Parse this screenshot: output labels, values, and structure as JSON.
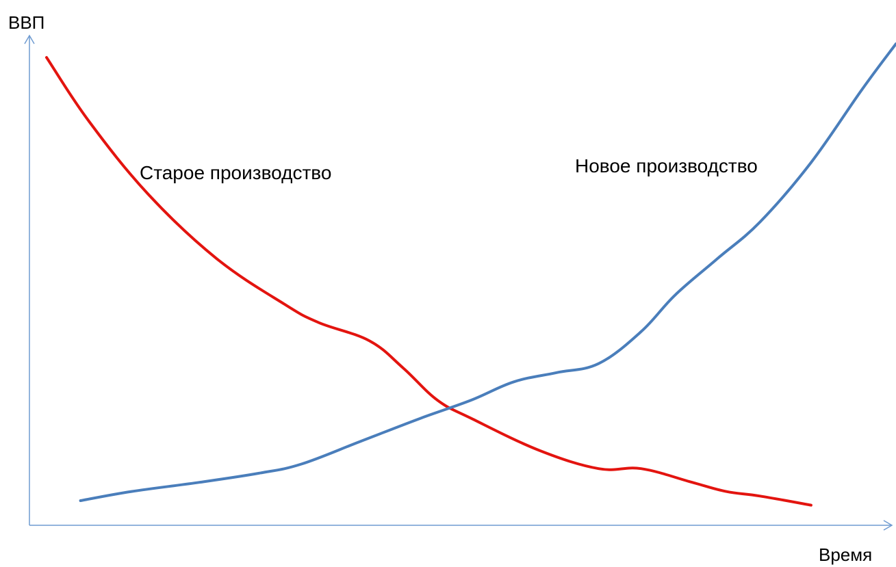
{
  "chart_data": {
    "type": "line",
    "title": "",
    "ylabel": "ВВП",
    "xlabel": "Время",
    "xlim": [
      0,
      100
    ],
    "ylim": [
      0,
      100
    ],
    "grid": false,
    "legend": "none",
    "series": [
      {
        "name": "Старое производство",
        "color": "#e3140f",
        "x": [
          0,
          5,
          12,
          20,
          28,
          32,
          38,
          42,
          46,
          50,
          58,
          65,
          70,
          76,
          80,
          84,
          90
        ],
        "y": [
          100,
          86,
          70,
          56,
          46,
          42,
          38,
          32,
          25,
          21,
          14,
          10,
          10,
          7,
          5,
          4,
          2
        ]
      },
      {
        "name": "Новое производство",
        "color": "#4a7ebb",
        "x": [
          4,
          10,
          18,
          25,
          30,
          37,
          44,
          50,
          55,
          60,
          65,
          70,
          74,
          79,
          84,
          90,
          96,
          100
        ],
        "y": [
          3,
          5,
          7,
          9,
          11,
          16,
          21,
          25,
          29,
          31,
          33,
          40,
          48,
          56,
          64,
          77,
          93,
          103
        ]
      }
    ],
    "annotations": [
      {
        "text": "Старое производство",
        "series": 0
      },
      {
        "text": "Новое производство",
        "series": 1
      }
    ]
  }
}
